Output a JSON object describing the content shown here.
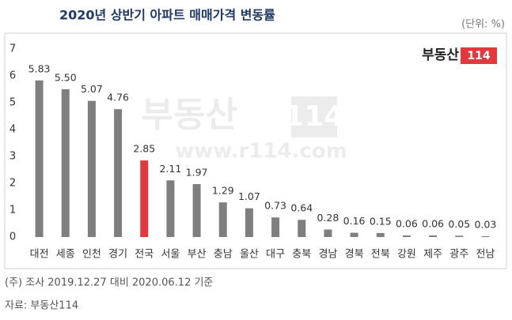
{
  "chart_data": {
    "type": "bar",
    "title": "2020년 상반기 아파트 매매가격 변동률",
    "unit": "(단위: %)",
    "logo": {
      "text": "부동산",
      "badge": "114"
    },
    "watermark": {
      "text": "부동산",
      "badge": "114",
      "url": "www.r114.com"
    },
    "categories": [
      "대전",
      "세종",
      "인천",
      "경기",
      "전국",
      "서울",
      "부산",
      "충남",
      "울산",
      "대구",
      "충북",
      "경남",
      "경북",
      "전북",
      "강원",
      "제주",
      "광주",
      "전남"
    ],
    "values": [
      5.83,
      5.5,
      5.07,
      4.76,
      2.85,
      2.11,
      1.97,
      1.29,
      1.07,
      0.73,
      0.64,
      0.28,
      0.16,
      0.15,
      0.06,
      0.06,
      0.05,
      0.03
    ],
    "value_labels": [
      "5.83",
      "5.50",
      "5.07",
      "4.76",
      "2.85",
      "2.11",
      "1.97",
      "1.29",
      "1.07",
      "0.73",
      "0.64",
      "0.28",
      "0.16",
      "0.15",
      "0.06",
      "0.06",
      "0.05",
      "0.03"
    ],
    "colors": [
      "#7f7f7f",
      "#7f7f7f",
      "#7f7f7f",
      "#7f7f7f",
      "#e0393e",
      "#7f7f7f",
      "#7f7f7f",
      "#7f7f7f",
      "#7f7f7f",
      "#7f7f7f",
      "#7f7f7f",
      "#7f7f7f",
      "#7f7f7f",
      "#7f7f7f",
      "#7f7f7f",
      "#7f7f7f",
      "#7f7f7f",
      "#7f7f7f"
    ],
    "ylim": [
      0,
      7
    ],
    "yticks": [
      0,
      1,
      2,
      3,
      4,
      5,
      6,
      7
    ],
    "grid": false,
    "notes": [
      "(주) 조사 2019.12.27 대비 2020.06.12 기준",
      "자료: 부동산114"
    ]
  }
}
